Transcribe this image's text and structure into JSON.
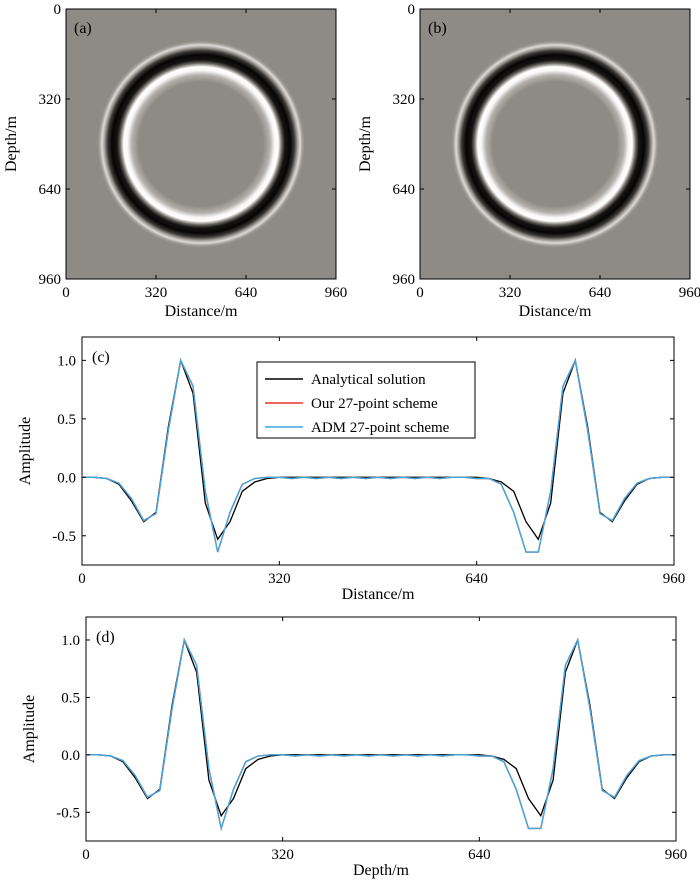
{
  "chart_data": [
    {
      "type": "heatmap",
      "panel_label": "(a)",
      "xlabel": "Distance/m",
      "ylabel": "Depth/m",
      "xlim": [
        0,
        960
      ],
      "ylim": [
        0,
        960
      ],
      "y_inverted": true,
      "xticks": [
        "0",
        "320",
        "640",
        "960"
      ],
      "yticks": [
        "0",
        "320",
        "640",
        "960"
      ],
      "wavefront": {
        "center": [
          480,
          480
        ],
        "radius": 315,
        "colormap": "gray"
      }
    },
    {
      "type": "heatmap",
      "panel_label": "(b)",
      "xlabel": "Distance/m",
      "ylabel": "Depth/m",
      "xlim": [
        0,
        960
      ],
      "ylim": [
        0,
        960
      ],
      "y_inverted": true,
      "xticks": [
        "0",
        "320",
        "640",
        "960"
      ],
      "yticks": [
        "0",
        "320",
        "640",
        "960"
      ],
      "wavefront": {
        "center": [
          480,
          480
        ],
        "radius": 315,
        "colormap": "gray"
      }
    },
    {
      "type": "line",
      "panel_label": "(c)",
      "xlabel": "Distance/m",
      "ylabel": "Amplitude",
      "xlim": [
        0,
        960
      ],
      "ylim": [
        -0.75,
        1.2
      ],
      "xticks": [
        "0",
        "320",
        "640",
        "960"
      ],
      "yticks": [
        "1.0",
        "0.5",
        "0.0",
        "-0.5"
      ],
      "legend_position": "top-center",
      "x": [
        0,
        20,
        40,
        60,
        80,
        100,
        120,
        140,
        160,
        180,
        200,
        220,
        240,
        260,
        280,
        300,
        320,
        340,
        360,
        380,
        400,
        420,
        440,
        460,
        480,
        500,
        520,
        540,
        560,
        580,
        600,
        620,
        640,
        660,
        680,
        700,
        720,
        740,
        760,
        780,
        800,
        820,
        840,
        860,
        880,
        900,
        920,
        940,
        960
      ],
      "series": [
        {
          "name": "Analytical solution",
          "color": "#000000",
          "values": [
            0,
            0,
            -0.01,
            -0.06,
            -0.2,
            -0.38,
            -0.3,
            0.43,
            1.0,
            0.72,
            -0.22,
            -0.53,
            -0.38,
            -0.12,
            -0.04,
            -0.01,
            0,
            0,
            0,
            0,
            0,
            0,
            0,
            0,
            0,
            0,
            0,
            0,
            0,
            0,
            0,
            0,
            0,
            -0.01,
            -0.04,
            -0.12,
            -0.38,
            -0.53,
            -0.22,
            0.72,
            1.0,
            0.43,
            -0.3,
            -0.38,
            -0.2,
            -0.06,
            -0.01,
            0,
            0
          ]
        },
        {
          "name": "Our 27-point scheme",
          "color": "#e8332a",
          "values": [
            0,
            0,
            -0.01,
            -0.05,
            -0.18,
            -0.37,
            -0.31,
            0.4,
            1.0,
            0.78,
            -0.12,
            -0.64,
            -0.3,
            -0.06,
            -0.01,
            0,
            0,
            -0.01,
            0,
            -0.01,
            0,
            -0.01,
            0,
            -0.01,
            0,
            -0.01,
            0,
            -0.01,
            0,
            -0.01,
            0,
            0,
            -0.01,
            -0.01,
            -0.06,
            -0.3,
            -0.64,
            -0.64,
            -0.12,
            0.78,
            1.0,
            0.4,
            -0.31,
            -0.37,
            -0.18,
            -0.05,
            -0.01,
            0,
            0
          ]
        },
        {
          "name": "ADM 27-point scheme",
          "color": "#3fa9e0",
          "values": [
            0,
            0,
            -0.01,
            -0.05,
            -0.18,
            -0.37,
            -0.31,
            0.4,
            1.0,
            0.78,
            -0.12,
            -0.64,
            -0.3,
            -0.06,
            -0.01,
            0,
            0,
            -0.01,
            0,
            -0.01,
            0,
            -0.01,
            0,
            -0.01,
            0,
            -0.01,
            0,
            -0.01,
            0,
            -0.01,
            0,
            0,
            -0.01,
            -0.01,
            -0.06,
            -0.3,
            -0.64,
            -0.64,
            -0.12,
            0.78,
            1.0,
            0.4,
            -0.31,
            -0.37,
            -0.18,
            -0.05,
            -0.01,
            0,
            0
          ]
        }
      ]
    },
    {
      "type": "line",
      "panel_label": "(d)",
      "xlabel": "Depth/m",
      "ylabel": "Amplitude",
      "xlim": [
        0,
        960
      ],
      "ylim": [
        -0.75,
        1.2
      ],
      "xticks": [
        "0",
        "320",
        "640",
        "960"
      ],
      "yticks": [
        "1.0",
        "0.5",
        "0.0",
        "-0.5"
      ],
      "x": [
        0,
        20,
        40,
        60,
        80,
        100,
        120,
        140,
        160,
        180,
        200,
        220,
        240,
        260,
        280,
        300,
        320,
        340,
        360,
        380,
        400,
        420,
        440,
        460,
        480,
        500,
        520,
        540,
        560,
        580,
        600,
        620,
        640,
        660,
        680,
        700,
        720,
        740,
        760,
        780,
        800,
        820,
        840,
        860,
        880,
        900,
        920,
        940,
        960
      ],
      "series": [
        {
          "color": "#000000",
          "values": [
            0,
            0,
            -0.01,
            -0.06,
            -0.2,
            -0.38,
            -0.3,
            0.43,
            1.0,
            0.72,
            -0.22,
            -0.53,
            -0.38,
            -0.12,
            -0.04,
            -0.01,
            0,
            0,
            0,
            0,
            0,
            0,
            0,
            0,
            0,
            0,
            0,
            0,
            0,
            0,
            0,
            0,
            0,
            -0.01,
            -0.04,
            -0.12,
            -0.38,
            -0.53,
            -0.22,
            0.72,
            1.0,
            0.43,
            -0.3,
            -0.38,
            -0.2,
            -0.06,
            -0.01,
            0,
            0
          ]
        },
        {
          "color": "#e8332a",
          "values": [
            0,
            0,
            -0.01,
            -0.05,
            -0.18,
            -0.37,
            -0.31,
            0.4,
            1.0,
            0.78,
            -0.12,
            -0.64,
            -0.3,
            -0.06,
            -0.01,
            0,
            0,
            -0.01,
            0,
            -0.01,
            0,
            -0.01,
            0,
            -0.01,
            0,
            -0.01,
            0,
            -0.01,
            0,
            -0.01,
            0,
            0,
            -0.01,
            -0.01,
            -0.06,
            -0.3,
            -0.64,
            -0.64,
            -0.12,
            0.78,
            1.0,
            0.4,
            -0.31,
            -0.37,
            -0.18,
            -0.05,
            -0.01,
            0,
            0
          ]
        },
        {
          "color": "#3fa9e0",
          "values": [
            0,
            0,
            -0.01,
            -0.05,
            -0.18,
            -0.37,
            -0.31,
            0.4,
            1.0,
            0.78,
            -0.12,
            -0.64,
            -0.3,
            -0.06,
            -0.01,
            0,
            0,
            -0.01,
            0,
            -0.01,
            0,
            -0.01,
            0,
            -0.01,
            0,
            -0.01,
            0,
            -0.01,
            0,
            -0.01,
            0,
            0,
            -0.01,
            -0.01,
            -0.06,
            -0.3,
            -0.64,
            -0.64,
            -0.12,
            0.78,
            1.0,
            0.4,
            -0.31,
            -0.37,
            -0.18,
            -0.05,
            -0.01,
            0,
            0
          ]
        }
      ]
    }
  ]
}
